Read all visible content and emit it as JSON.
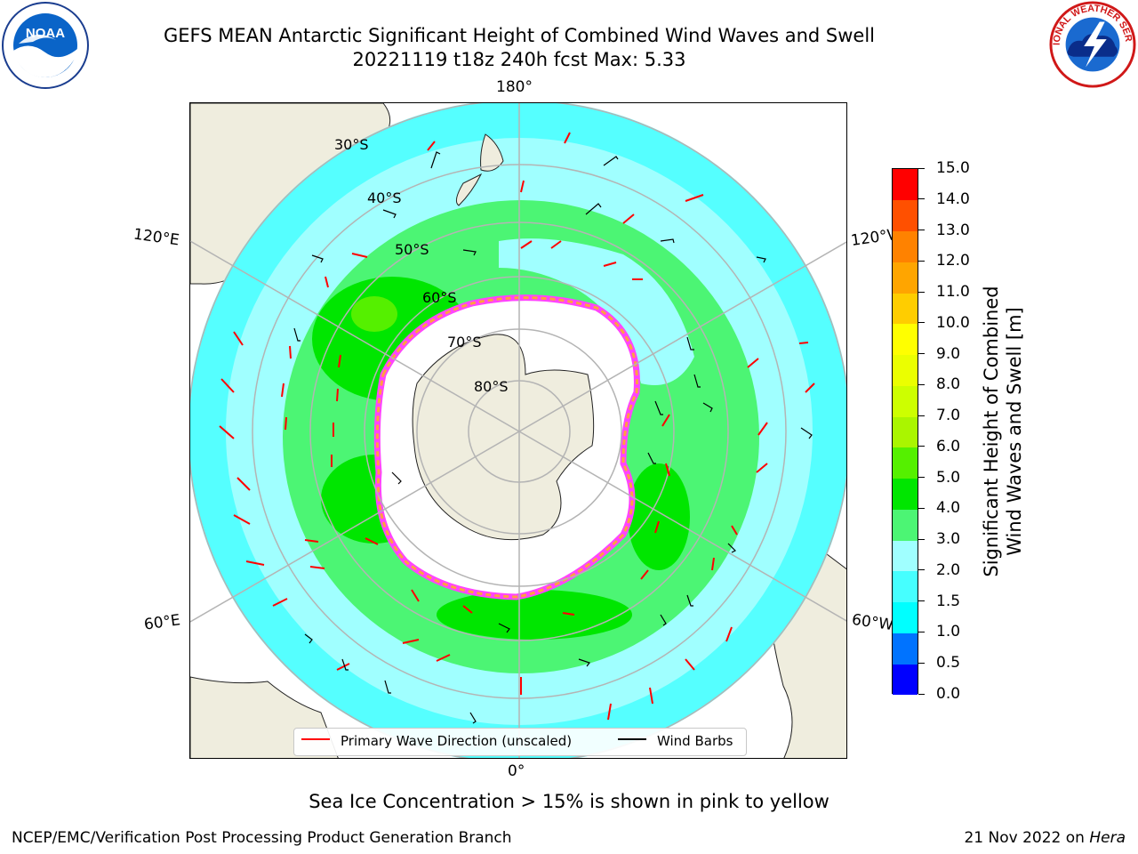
{
  "title": {
    "line1": "GEFS MEAN Antarctic Significant Height of Combined Wind Waves and Swell",
    "line2": "20221119 t18z 240h fcst   Max: 5.33"
  },
  "map": {
    "projection": "south-polar-stereographic",
    "longitude_labels": {
      "top": "180°",
      "bottom": "0°",
      "upper_left": "120°E",
      "upper_right": "120°W",
      "lower_left": "60°E",
      "lower_right": "60°W"
    },
    "latitude_labels": [
      "30°S",
      "40°S",
      "50°S",
      "60°S",
      "70°S",
      "80°S"
    ],
    "colors": {
      "land": "#efedde",
      "ice": "#ffffff",
      "sea_ice_edge": [
        "#ff44ff",
        "#ffa040",
        "#ffd070"
      ],
      "graticule": "#b4b4b4",
      "wave_arrow": "#ff0000",
      "wind_barb": "#000000"
    }
  },
  "colorbar": {
    "label": "Significant Height of Combined Wind Waves and Swell [m]",
    "label_line1": "Significant Height of Combined",
    "label_line2": "Wind Waves and Swell [m]",
    "ticks": [
      "0.0",
      "0.5",
      "1.0",
      "1.5",
      "2.0",
      "3.0",
      "4.0",
      "5.0",
      "6.0",
      "7.0",
      "8.0",
      "9.0",
      "10.0",
      "11.0",
      "12.0",
      "13.0",
      "14.0",
      "15.0"
    ],
    "colors": [
      "#0000ff",
      "#0073ff",
      "#00ffff",
      "#46ffff",
      "#a0ffff",
      "#4cf574",
      "#00e600",
      "#55f000",
      "#aaf500",
      "#cdff00",
      "#ebff00",
      "#ffff00",
      "#ffcd00",
      "#ffa500",
      "#ff8200",
      "#ff5000",
      "#ff0000"
    ]
  },
  "legend": {
    "wave_direction": "Primary Wave Direction (unscaled)",
    "wind_barbs": "Wind Barbs"
  },
  "note": "Sea Ice Concentration > 15% is shown in pink to yellow",
  "footer": {
    "left": "NCEP/EMC/Verification Post Processing Product Generation Branch",
    "date": "21 Nov 2022 on",
    "machine": "Hera"
  },
  "logos": {
    "left": {
      "text": "NOAA",
      "icon": "noaa-logo"
    },
    "right": {
      "text": "NATIONAL WEATHER SERVICE",
      "icon": "nws-logo"
    }
  }
}
